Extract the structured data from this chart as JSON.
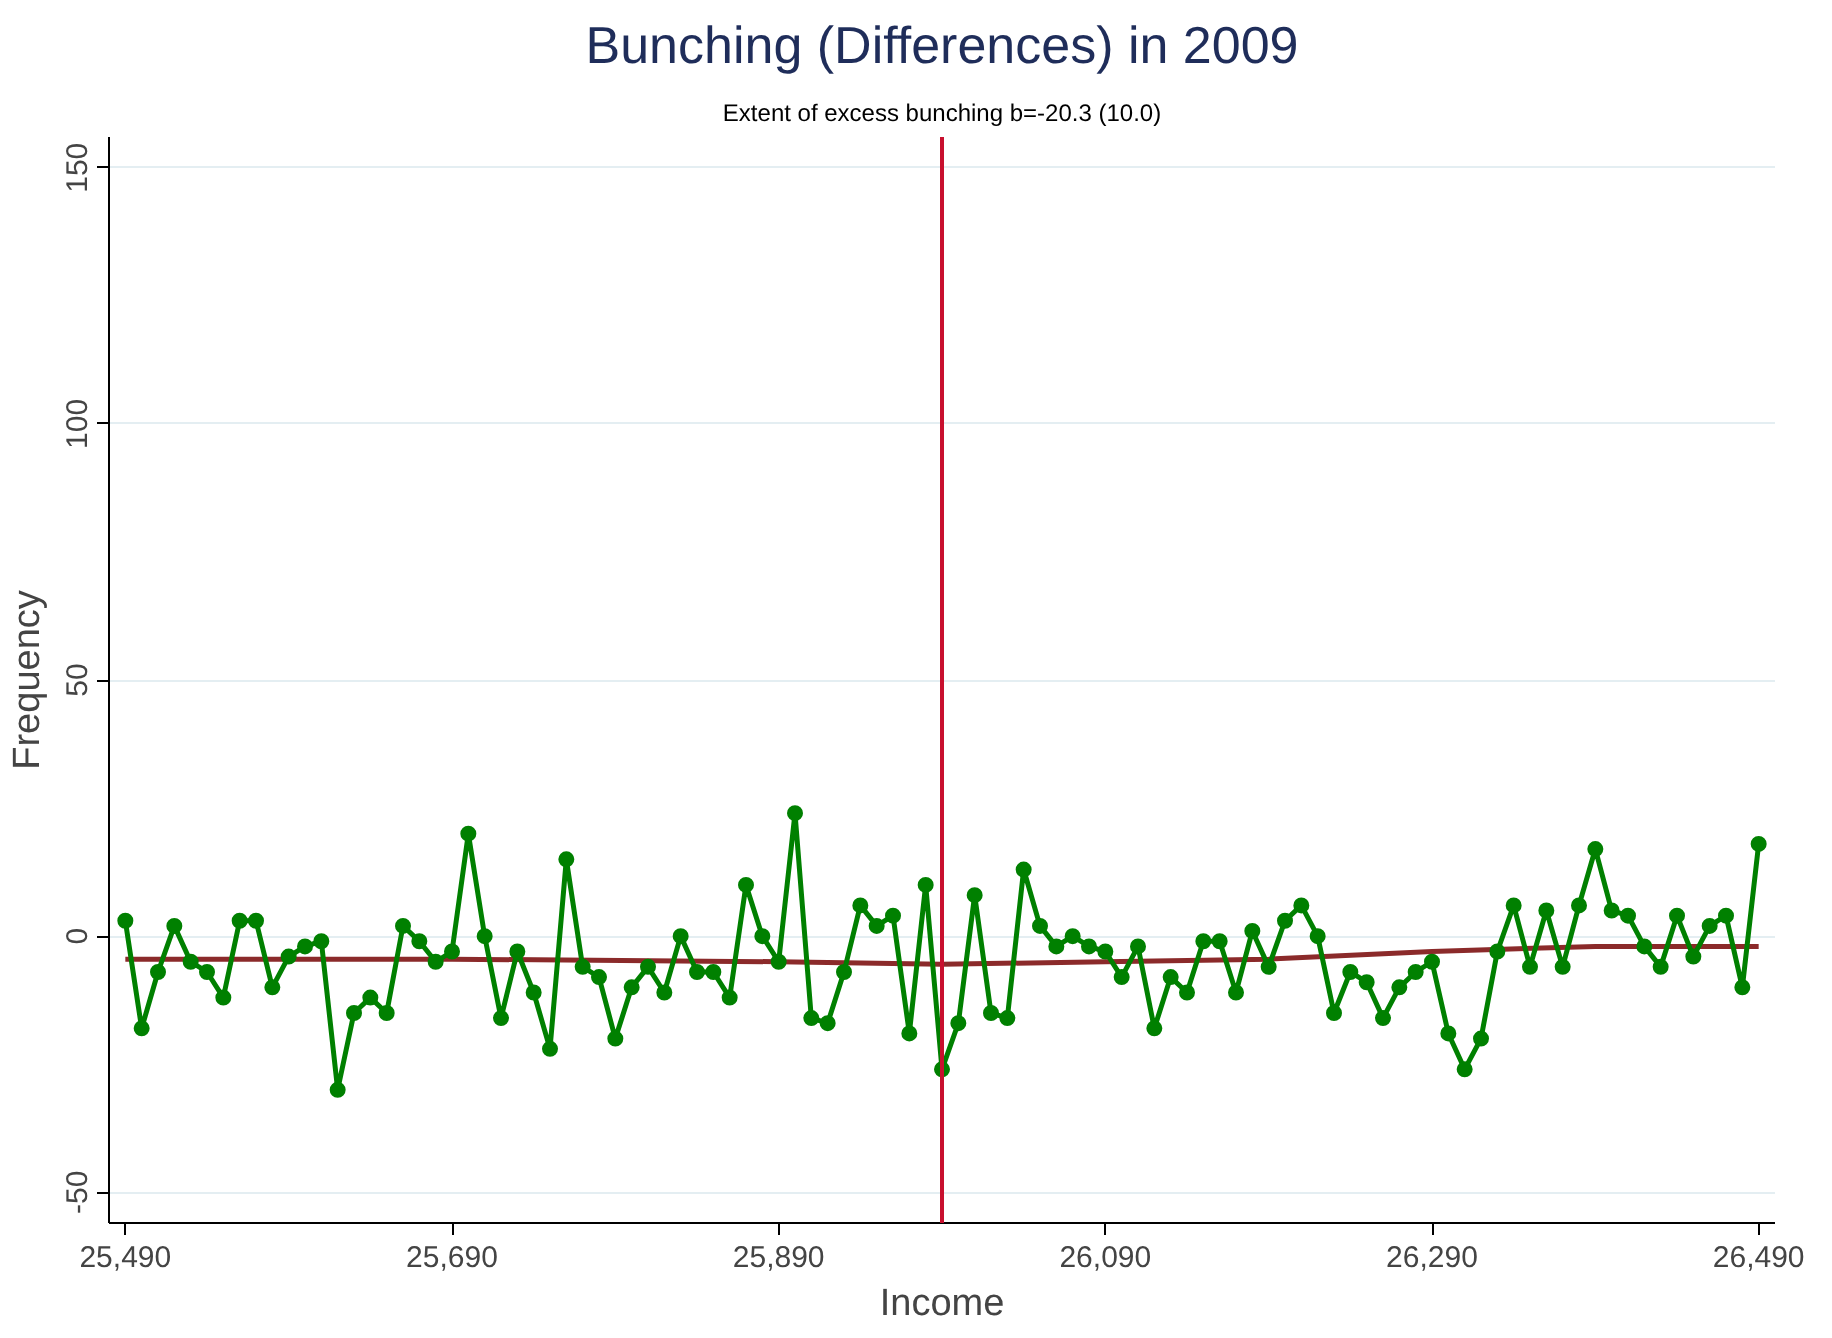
{
  "chart_data": {
    "type": "line",
    "title": "Bunching (Differences) in 2009",
    "subtitle": "Extent of excess bunching b=-20.3 (10.0)",
    "xlabel": "Income",
    "ylabel": "Frequency",
    "x": [
      25490,
      25500,
      25510,
      25520,
      25530,
      25540,
      25550,
      25560,
      25570,
      25580,
      25590,
      25600,
      25610,
      25620,
      25630,
      25640,
      25650,
      25660,
      25670,
      25680,
      25690,
      25700,
      25710,
      25720,
      25730,
      25740,
      25750,
      25760,
      25770,
      25780,
      25790,
      25800,
      25810,
      25820,
      25830,
      25840,
      25850,
      25860,
      25870,
      25880,
      25890,
      25900,
      25910,
      25920,
      25930,
      25940,
      25950,
      25960,
      25970,
      25980,
      25990,
      26000,
      26010,
      26020,
      26030,
      26040,
      26050,
      26060,
      26070,
      26080,
      26090,
      26100,
      26110,
      26120,
      26130,
      26140,
      26150,
      26160,
      26170,
      26180,
      26190,
      26200,
      26210,
      26220,
      26230,
      26240,
      26250,
      26260,
      26270,
      26280,
      26290,
      26300,
      26310,
      26320,
      26330,
      26340,
      26350,
      26360,
      26370,
      26380,
      26390,
      26400,
      26410,
      26420,
      26430,
      26440,
      26450,
      26460,
      26470,
      26480,
      26490
    ],
    "series": [
      {
        "color": "#8b2a2a",
        "marker": "none",
        "x": [
          25490,
          25690,
          25890,
          25990,
          26090,
          26190,
          26290,
          26390,
          26490
        ],
        "values": [
          -4.5,
          -4.5,
          -5,
          -5.5,
          -5,
          -4.5,
          -3,
          -2,
          -2
        ]
      },
      {
        "color": "#008000",
        "marker": "circle",
        "values": [
          3,
          -18,
          -7,
          2,
          -5,
          -7,
          -12,
          3,
          3,
          -10,
          -4,
          -2,
          -1,
          -30,
          -15,
          -12,
          -15,
          2,
          -1,
          -5,
          -3,
          20,
          0,
          -16,
          -3,
          -11,
          -22,
          15,
          -6,
          -8,
          -20,
          -10,
          -6,
          -11,
          0,
          -7,
          -7,
          -12,
          10,
          0,
          -5,
          24,
          -16,
          -17,
          -7,
          6,
          2,
          4,
          -19,
          10,
          -26,
          -17,
          8,
          -15,
          -16,
          13,
          2,
          -2,
          0,
          -2,
          -3,
          -8,
          -2,
          -18,
          -8,
          -11,
          -1,
          -1,
          -11,
          1,
          -6,
          3,
          6,
          0,
          -15,
          -7,
          -9,
          -16,
          -10,
          -7,
          -5,
          -19,
          -26,
          -20,
          -3,
          6,
          -6,
          5,
          -6,
          6,
          17,
          5,
          4,
          -2,
          -6,
          4,
          -4,
          2,
          4,
          -10,
          18
        ]
      }
    ],
    "ref_lines": [
      {
        "axis": "x",
        "value": 25990,
        "color": "#c8102e"
      }
    ],
    "xlim": [
      25480,
      26500
    ],
    "ylim": [
      -56,
      156
    ],
    "xticks": [
      {
        "value": 25490,
        "label": "25,490"
      },
      {
        "value": 25690,
        "label": "25,690"
      },
      {
        "value": 25890,
        "label": "25,890"
      },
      {
        "value": 26090,
        "label": "26,090"
      },
      {
        "value": 26290,
        "label": "26,290"
      },
      {
        "value": 26490,
        "label": "26,490"
      }
    ],
    "yticks": [
      -50,
      0,
      50,
      100,
      150
    ],
    "grid": "y"
  }
}
